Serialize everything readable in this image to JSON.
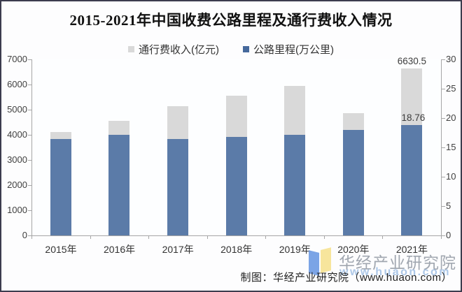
{
  "title": "2015-2021年中国收费公路里程及通行费收入情况",
  "legend": [
    {
      "label": "通行费收入(亿元)",
      "color": "#d9d9d9"
    },
    {
      "label": "公路里程(万公里)",
      "color": "#46699c"
    }
  ],
  "chart_data": {
    "type": "bar",
    "title": "2015-2021年中国收费公路里程及通行费收入情况",
    "categories": [
      "2015年",
      "2016年",
      "2017年",
      "2018年",
      "2019年",
      "2020年",
      "2021年"
    ],
    "series": [
      {
        "name": "通行费收入(亿元)",
        "axis": "left",
        "color": "#d9d9d9",
        "values": [
          4097.8,
          4548.5,
          5130.2,
          5552.4,
          5937.9,
          4868.1,
          6630.5
        ]
      },
      {
        "name": "公路里程(万公里)",
        "axis": "right",
        "color": "#5b7ba8",
        "values": [
          16.44,
          17.11,
          16.37,
          16.81,
          17.11,
          17.92,
          18.76
        ]
      }
    ],
    "left_axis": {
      "min": 0,
      "max": 7000,
      "step": 1000
    },
    "right_axis": {
      "min": 0,
      "max": 30,
      "step": 5
    },
    "grid": false,
    "legend_position": "top",
    "data_labels": {
      "category": "2021年",
      "revenue_label": "6630.5",
      "mileage_label": "18.76"
    }
  },
  "footer": {
    "credit": "制图：华经产业研究院（www.huaon.com）"
  },
  "watermark": {
    "brand": "华经产业研究院",
    "site": "www.huaon.com"
  }
}
